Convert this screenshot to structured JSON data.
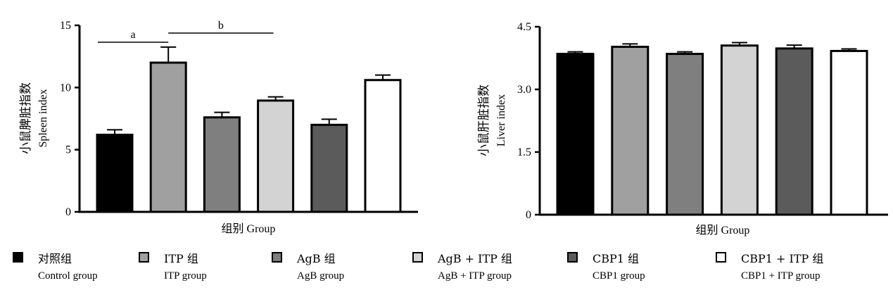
{
  "chart_data": [
    {
      "type": "bar",
      "categories": [
        "对照组",
        "ITP组",
        "AgB组",
        "AgB + ITP组",
        "CBP1组",
        "CBP1 + ITP组"
      ],
      "values": [
        6.2,
        12.0,
        7.6,
        8.95,
        7.0,
        10.6
      ],
      "errors": [
        0.4,
        1.25,
        0.4,
        0.3,
        0.45,
        0.4
      ],
      "colors": [
        "#000000",
        "#a0a0a0",
        "#7f7f7f",
        "#d3d3d3",
        "#5b5b5b",
        "#ffffff"
      ],
      "ylabel_cn": "小鼠脾脏指数",
      "ylabel_en": "Spleen  index",
      "xlabel": "组别  Group",
      "ylim": [
        0,
        15
      ],
      "yticks": [
        "0",
        "5",
        "10",
        "15"
      ],
      "significance": [
        {
          "label": "a",
          "from": 0,
          "to": 1
        },
        {
          "label": "b",
          "from": 1,
          "to": 3
        }
      ]
    },
    {
      "type": "bar",
      "categories": [
        "对照组",
        "ITP组",
        "AgB组",
        "AgB + ITP组",
        "CBP1组",
        "CBP1 + ITP组"
      ],
      "values": [
        3.85,
        4.02,
        3.85,
        4.05,
        3.98,
        3.92
      ],
      "errors": [
        0.05,
        0.07,
        0.05,
        0.07,
        0.08,
        0.05
      ],
      "colors": [
        "#000000",
        "#a0a0a0",
        "#7f7f7f",
        "#d3d3d3",
        "#5b5b5b",
        "#ffffff"
      ],
      "ylabel_cn": "小鼠肝脏指数",
      "ylabel_en": "Liver  index",
      "xlabel": "组别  Group",
      "ylim": [
        0,
        4.5
      ],
      "yticks": [
        "0",
        "1.5",
        "3.0",
        "4.5"
      ]
    }
  ],
  "legend": [
    {
      "cn": "对照组",
      "en": "Control  group",
      "color": "#000000"
    },
    {
      "cn": "ITP 组",
      "en": "ITP  group",
      "color": "#a0a0a0"
    },
    {
      "cn": "AgB 组",
      "en": "AgB  group",
      "color": "#7f7f7f"
    },
    {
      "cn": "AgB + ITP 组",
      "en": "AgB + ITP  group",
      "color": "#d3d3d3"
    },
    {
      "cn": "CBP1 组",
      "en": "CBP1  group",
      "color": "#5b5b5b"
    },
    {
      "cn": "CBP1 + ITP 组",
      "en": "CBP1 + ITP  group",
      "color": "#ffffff"
    }
  ]
}
